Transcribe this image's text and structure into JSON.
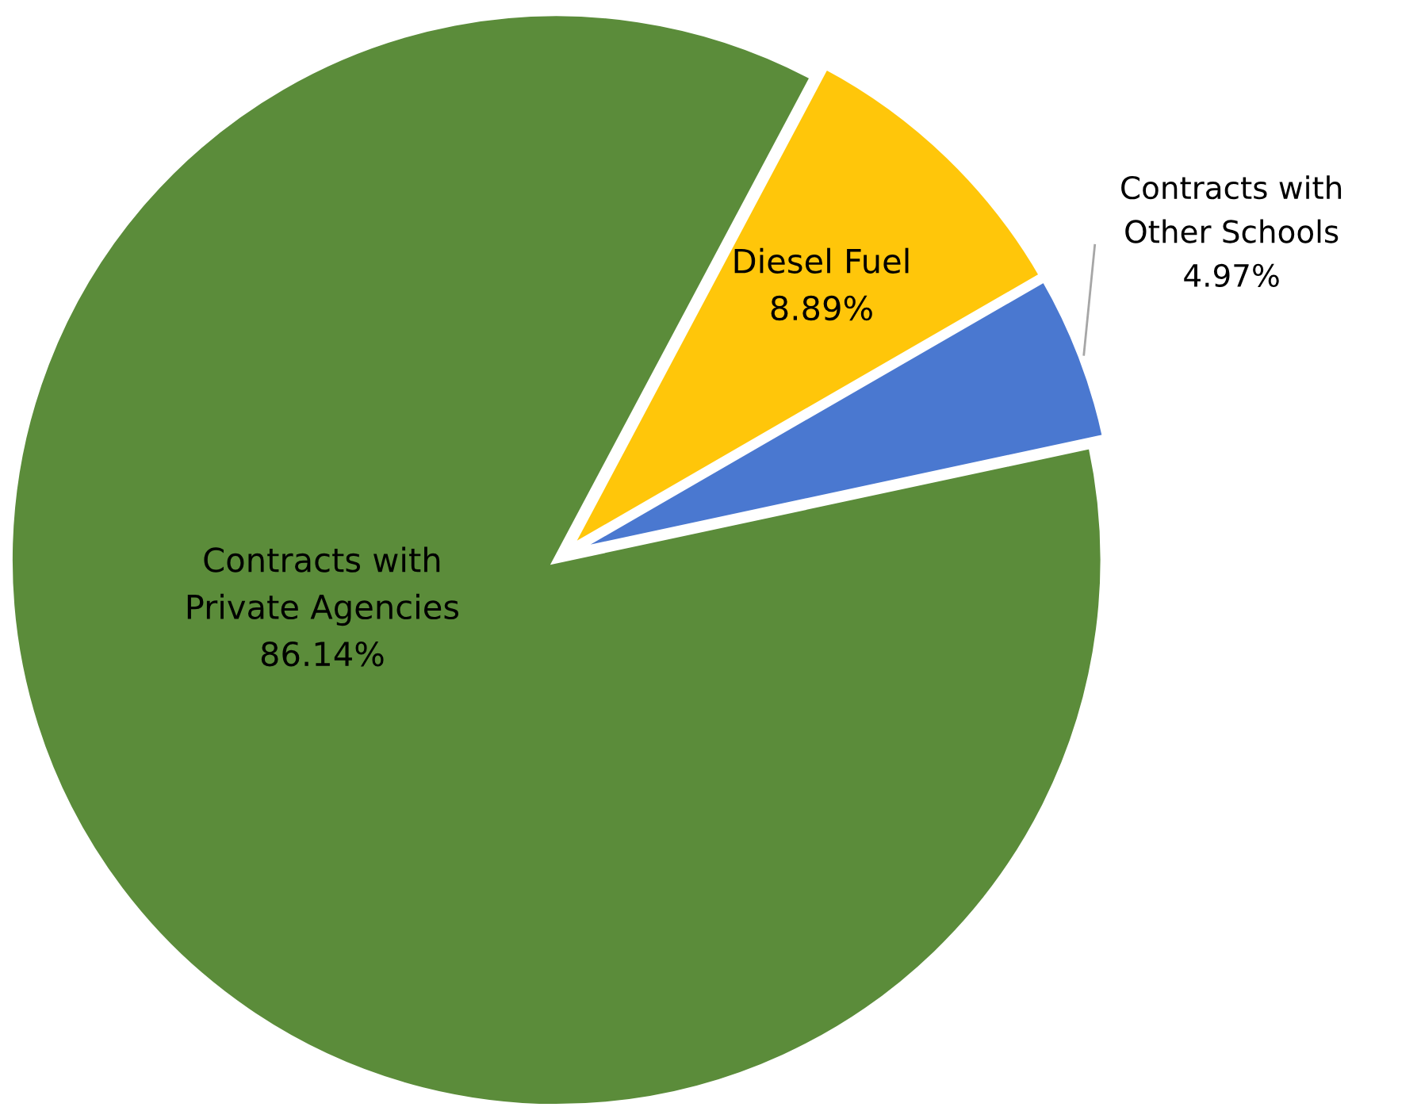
{
  "chart_data": {
    "type": "pie",
    "categories": [
      "Diesel Fuel",
      "Contracts with\nOther Schools",
      "Contracts with\nPrivate Agencies"
    ],
    "values": [
      8.89,
      4.97,
      86.14
    ],
    "colors": [
      "#ffc60a",
      "#4a78d0",
      "#5b8c3a"
    ],
    "value_labels": [
      "8.89%",
      "4.97%",
      "86.14%"
    ],
    "legend": false
  }
}
